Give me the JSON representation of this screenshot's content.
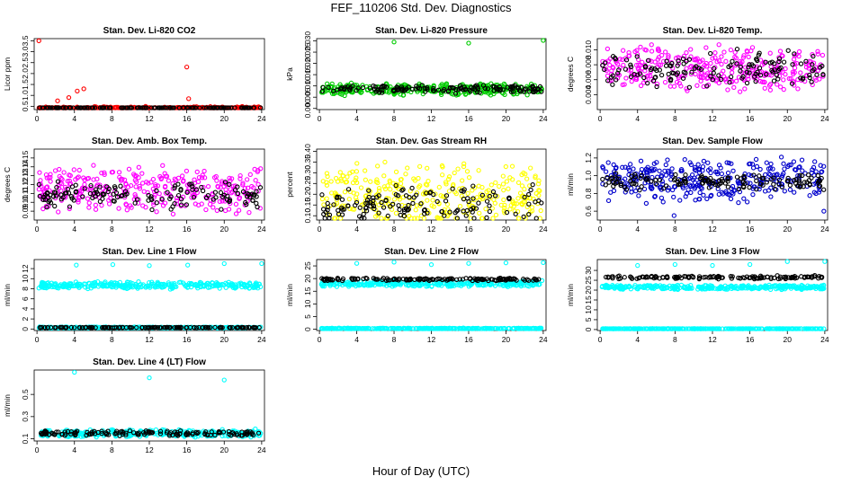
{
  "figure": {
    "title": "FEF_110206  Std. Dev. Diagnostics",
    "xlabel": "Hour of Day (UTC)"
  },
  "chart_data": [
    {
      "type": "scatter",
      "title": "Stan. Dev. Li-820 CO2",
      "ylabel": "Licor ppm",
      "xticks": [
        0,
        4,
        8,
        12,
        16,
        20,
        24
      ],
      "yticks": [
        "0.5",
        "1.0",
        "1.5",
        "2.0",
        "2.5",
        "3.0",
        "3.5"
      ],
      "ylim": [
        0.35,
        3.6
      ],
      "series": [
        {
          "color": "#ff0000",
          "base": 0.42,
          "noise": 0.08,
          "x": [
            0.2,
            2.2,
            3.4,
            4.3,
            5.0,
            16.0,
            16.2
          ],
          "values": [
            3.5,
            0.75,
            0.9,
            1.2,
            1.3,
            2.3,
            0.85
          ]
        },
        {
          "color": "#000000",
          "base": 0.4,
          "noise": 0.03
        }
      ]
    },
    {
      "type": "scatter",
      "title": "Stan. Dev. Li-820 Pressure",
      "ylabel": "kPa",
      "xticks": [
        0,
        4,
        8,
        12,
        16,
        20,
        24
      ],
      "yticks": [
        "0.000",
        "0.005",
        "0.010",
        "0.015",
        "0.020",
        "0.025",
        "0.030"
      ],
      "ylim": [
        -0.0005,
        0.031
      ],
      "series": [
        {
          "color": "#00cc00",
          "base": 0.0085,
          "noise": 0.003,
          "x": [
            8.0,
            16.0,
            24.0
          ],
          "values": [
            0.0295,
            0.029,
            0.0305
          ]
        },
        {
          "color": "#000000",
          "base": 0.0085,
          "noise": 0.002
        }
      ]
    },
    {
      "type": "scatter",
      "title": "Stan. Dev. Li-820 Temp.",
      "ylabel": "degrees C",
      "xticks": [
        0,
        4,
        8,
        12,
        16,
        20,
        24
      ],
      "yticks": [
        "0.004",
        "0.006",
        "0.008",
        "0.010"
      ],
      "ylim": [
        0.002,
        0.0115
      ],
      "series": [
        {
          "color": "#ff00ff",
          "base": 0.0075,
          "noise": 0.0035
        },
        {
          "color": "#000000",
          "base": 0.0075,
          "noise": 0.0028
        }
      ]
    },
    {
      "type": "scatter",
      "title": "Stan. Dev. Amb. Box Temp.",
      "ylabel": "degrees C",
      "xticks": [
        0,
        4,
        8,
        12,
        16,
        20,
        24
      ],
      "yticks": [
        "0.09",
        "0.10",
        "0.11",
        "0.12",
        "0.13",
        "0.14",
        "0.15"
      ],
      "ylim": [
        0.08,
        0.16
      ],
      "series": [
        {
          "color": "#ff00ff",
          "base": 0.115,
          "noise": 0.03
        },
        {
          "color": "#000000",
          "base": 0.108,
          "noise": 0.018
        }
      ]
    },
    {
      "type": "scatter",
      "title": "Stan. Dev. Gas Stream RH",
      "ylabel": "percent",
      "xticks": [
        0,
        4,
        8,
        12,
        16,
        20,
        24
      ],
      "yticks": [
        "0.10",
        "0.15",
        "0.20",
        "0.25",
        "0.30",
        "0.35",
        "0.40"
      ],
      "ylim": [
        0.08,
        0.41
      ],
      "series": [
        {
          "color": "#ffff00",
          "base": 0.19,
          "noise": 0.17
        },
        {
          "color": "#000000",
          "base": 0.16,
          "noise": 0.1
        }
      ]
    },
    {
      "type": "scatter",
      "title": "Stan. Dev. Sample Flow",
      "ylabel": "ml/min",
      "xticks": [
        0,
        4,
        8,
        12,
        16,
        20,
        24
      ],
      "yticks": [
        "0.6",
        "0.8",
        "1.0",
        "1.2"
      ],
      "ylim": [
        0.5,
        1.3
      ],
      "series": [
        {
          "color": "#0000cc",
          "base": 0.95,
          "noise": 0.28,
          "x": [
            7.9,
            23.9
          ],
          "values": [
            0.55,
            0.6
          ]
        },
        {
          "color": "#000000",
          "base": 0.93,
          "noise": 0.1
        }
      ]
    },
    {
      "type": "scatter",
      "title": "Stan. Dev. Line 1 Flow",
      "ylabel": "ml/min",
      "xticks": [
        0,
        4,
        8,
        12,
        16,
        20,
        24
      ],
      "yticks": [
        "0",
        "2",
        "4",
        "6",
        "8",
        "10",
        "12"
      ],
      "ylim": [
        -0.3,
        13.8
      ],
      "series": [
        {
          "color": "#00ffff",
          "base": 8.7,
          "noise": 0.8,
          "x": [
            4.2,
            8.1,
            12.0,
            16.1,
            20.0,
            24.0
          ],
          "values": [
            12.7,
            12.8,
            12.6,
            12.7,
            13.0,
            13.0
          ]
        },
        {
          "color": "#00ffff",
          "base": 0.3,
          "noise": 0.15
        },
        {
          "color": "#000000",
          "base": 0.3,
          "noise": 0.05
        }
      ]
    },
    {
      "type": "scatter",
      "title": "Stan. Dev. Line 2 Flow",
      "ylabel": "ml/min",
      "xticks": [
        0,
        4,
        8,
        12,
        16,
        20,
        24
      ],
      "yticks": [
        "0",
        "5",
        "10",
        "15",
        "20",
        "25"
      ],
      "ylim": [
        -0.5,
        27.5
      ],
      "series": [
        {
          "color": "#00ffff",
          "base": 18.0,
          "noise": 1.4,
          "x": [
            4.0,
            8.0,
            12.0,
            16.0,
            20.0,
            24.0
          ],
          "values": [
            26.0,
            26.5,
            25.5,
            26.0,
            26.2,
            26.3
          ]
        },
        {
          "color": "#00ffff",
          "base": 0.3,
          "noise": 0.2
        },
        {
          "color": "#000000",
          "base": 19.7,
          "noise": 0.6
        }
      ]
    },
    {
      "type": "scatter",
      "title": "Stan. Dev. Line 3 Flow",
      "ylabel": "ml/min",
      "xticks": [
        0,
        4,
        8,
        12,
        16,
        20,
        24
      ],
      "yticks": [
        "0",
        "5",
        "10",
        "15",
        "20",
        "25",
        "30"
      ],
      "ylim": [
        -0.5,
        35.5
      ],
      "series": [
        {
          "color": "#00ffff",
          "base": 21.5,
          "noise": 1.3,
          "x": [
            4.0,
            8.0,
            12.0,
            16.0,
            20.0,
            24.0
          ],
          "values": [
            32.5,
            33.0,
            32.5,
            33.0,
            34.5,
            34.5
          ]
        },
        {
          "color": "#00ffff",
          "base": 0.3,
          "noise": 0.2
        },
        {
          "color": "#000000",
          "base": 26.5,
          "noise": 1.0
        }
      ]
    },
    {
      "type": "scatter",
      "title": "Stan. Dev. Line 4 (LT) Flow",
      "ylabel": "ml/min",
      "xticks": [
        0,
        4,
        8,
        12,
        16,
        20,
        24
      ],
      "yticks": [
        "0.1",
        "0.3",
        "0.5"
      ],
      "ylim": [
        0.08,
        0.72
      ],
      "series": [
        {
          "color": "#00ffff",
          "base": 0.15,
          "noise": 0.04,
          "x": [
            4.0,
            12.0,
            20.0
          ],
          "values": [
            0.7,
            0.65,
            0.63
          ]
        },
        {
          "color": "#000000",
          "base": 0.15,
          "noise": 0.025
        }
      ]
    }
  ]
}
